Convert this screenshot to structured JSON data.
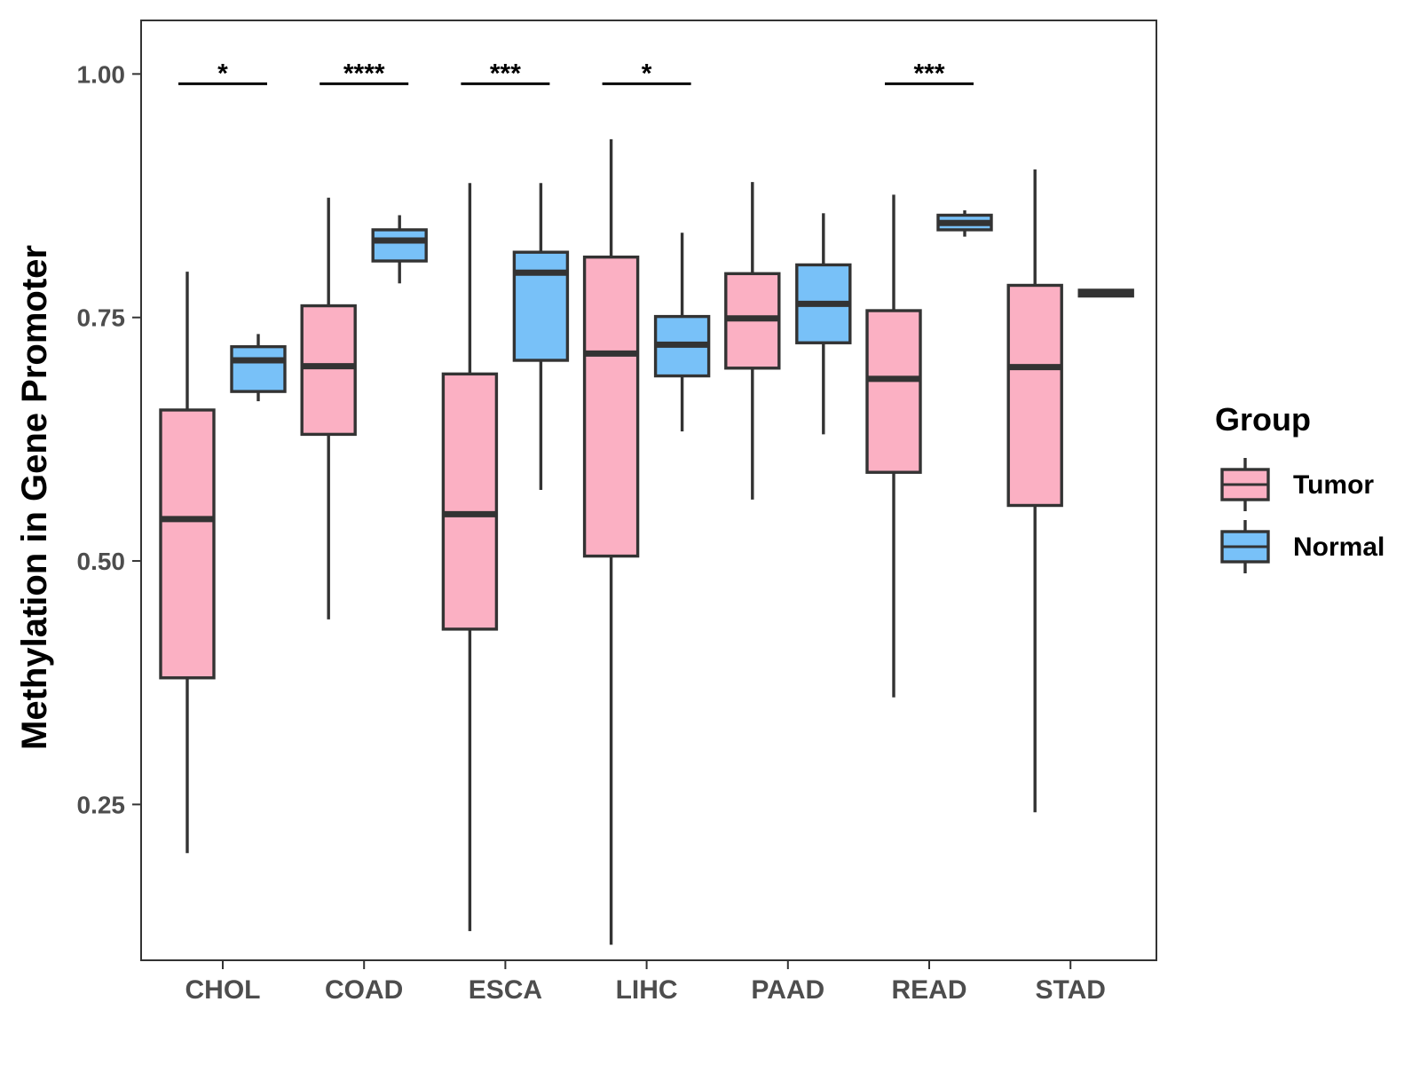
{
  "chart_data": {
    "type": "boxplot",
    "title": "",
    "xlabel": "",
    "ylabel": "Methylation in Gene Promoter",
    "ylim": [
      0.09,
      1.055
    ],
    "yticks": [
      0.25,
      0.5,
      0.75,
      1.0
    ],
    "ytick_labels": [
      "0.25",
      "0.50",
      "0.75",
      "1.00"
    ],
    "categories": [
      "CHOL",
      "COAD",
      "ESCA",
      "LIHC",
      "PAAD",
      "READ",
      "STAD"
    ],
    "legend": {
      "title": "Group",
      "position": "right",
      "entries": [
        {
          "name": "Tumor",
          "color": "#FBB0C3"
        },
        {
          "name": "Normal",
          "color": "#78C1F8"
        }
      ]
    },
    "series": [
      {
        "name": "Tumor",
        "color": "#FBB0C3",
        "boxes": [
          {
            "whisker_low": 0.2,
            "q1": 0.38,
            "median": 0.543,
            "q3": 0.655,
            "whisker_high": 0.797
          },
          {
            "whisker_low": 0.44,
            "q1": 0.63,
            "median": 0.7,
            "q3": 0.762,
            "whisker_high": 0.873
          },
          {
            "whisker_low": 0.12,
            "q1": 0.43,
            "median": 0.548,
            "q3": 0.692,
            "whisker_high": 0.888
          },
          {
            "whisker_low": 0.106,
            "q1": 0.505,
            "median": 0.713,
            "q3": 0.812,
            "whisker_high": 0.933
          },
          {
            "whisker_low": 0.563,
            "q1": 0.698,
            "median": 0.749,
            "q3": 0.795,
            "whisker_high": 0.889
          },
          {
            "whisker_low": 0.36,
            "q1": 0.591,
            "median": 0.687,
            "q3": 0.757,
            "whisker_high": 0.876
          },
          {
            "whisker_low": 0.242,
            "q1": 0.557,
            "median": 0.699,
            "q3": 0.783,
            "whisker_high": 0.902
          }
        ]
      },
      {
        "name": "Normal",
        "color": "#78C1F8",
        "boxes": [
          {
            "whisker_low": 0.664,
            "q1": 0.674,
            "median": 0.706,
            "q3": 0.72,
            "whisker_high": 0.733
          },
          {
            "whisker_low": 0.785,
            "q1": 0.808,
            "median": 0.829,
            "q3": 0.84,
            "whisker_high": 0.855
          },
          {
            "whisker_low": 0.573,
            "q1": 0.706,
            "median": 0.796,
            "q3": 0.817,
            "whisker_high": 0.888
          },
          {
            "whisker_low": 0.633,
            "q1": 0.69,
            "median": 0.722,
            "q3": 0.751,
            "whisker_high": 0.837
          },
          {
            "whisker_low": 0.63,
            "q1": 0.724,
            "median": 0.764,
            "q3": 0.804,
            "whisker_high": 0.857
          },
          {
            "whisker_low": 0.833,
            "q1": 0.84,
            "median": 0.847,
            "q3": 0.855,
            "whisker_high": 0.86
          },
          {
            "whisker_low": 0.772,
            "q1": 0.772,
            "median": 0.775,
            "q3": 0.778,
            "whisker_high": 0.779
          }
        ]
      }
    ],
    "significance": [
      {
        "category": "CHOL",
        "label": "*",
        "y": 0.99
      },
      {
        "category": "COAD",
        "label": "****",
        "y": 0.99
      },
      {
        "category": "ESCA",
        "label": "***",
        "y": 0.99
      },
      {
        "category": "LIHC",
        "label": "*",
        "y": 0.99
      },
      {
        "category": "READ",
        "label": "***",
        "y": 0.99
      }
    ]
  }
}
